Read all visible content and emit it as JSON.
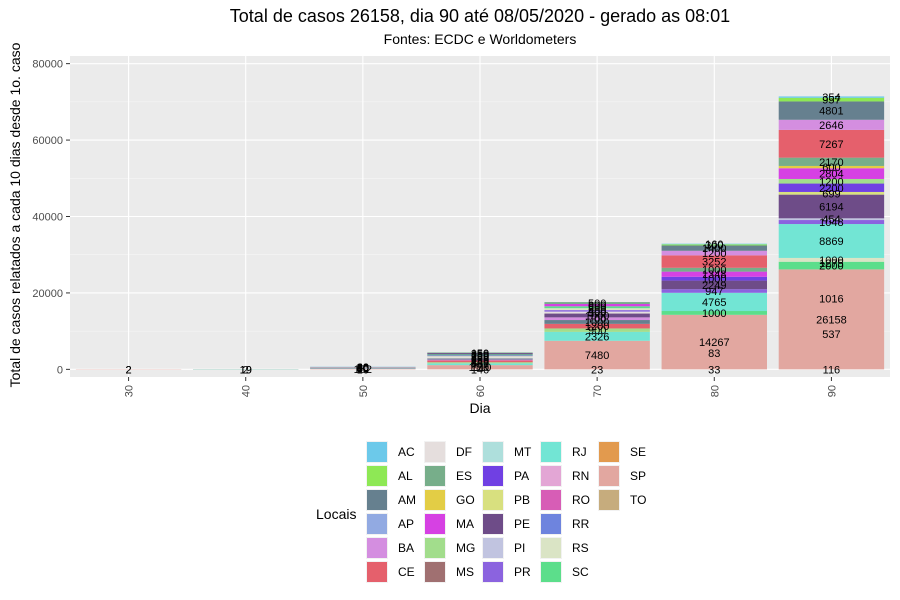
{
  "chart_data": {
    "type": "bar",
    "stacked": true,
    "title": "Total de casos 26158, dia 90 até 08/05/2020 - gerado as 08:01",
    "subtitle": "Fontes: ECDC e Worldometers",
    "xlabel": "Dia",
    "ylabel": "Total de casos relatados a cada 10 dias desde 1o. caso",
    "categories": [
      "30",
      "40",
      "50",
      "60",
      "70",
      "80",
      "90"
    ],
    "ylim": [
      -2000,
      82000
    ],
    "yticks": [
      0,
      20000,
      40000,
      60000,
      80000
    ],
    "ytick_labels": [
      "0",
      "20000",
      "40000",
      "60000",
      "80000"
    ],
    "grid": true,
    "legend": {
      "title": "Locais",
      "position": "bottom",
      "items": [
        {
          "name": "AC",
          "color": "#6CC9EA"
        },
        {
          "name": "AL",
          "color": "#8EE855"
        },
        {
          "name": "AM",
          "color": "#66808F"
        },
        {
          "name": "AP",
          "color": "#92AAE2"
        },
        {
          "name": "BA",
          "color": "#D48EE0"
        },
        {
          "name": "CE",
          "color": "#E5606C"
        },
        {
          "name": "DF",
          "color": "#E5DEDD"
        },
        {
          "name": "ES",
          "color": "#77AE8A"
        },
        {
          "name": "GO",
          "color": "#E3CD45"
        },
        {
          "name": "MA",
          "color": "#D641E3"
        },
        {
          "name": "MG",
          "color": "#A2DD8C"
        },
        {
          "name": "MS",
          "color": "#A07071"
        },
        {
          "name": "MT",
          "color": "#AEDFDC"
        },
        {
          "name": "PA",
          "color": "#7040E3"
        },
        {
          "name": "PB",
          "color": "#D8E07F"
        },
        {
          "name": "PE",
          "color": "#6E4C88"
        },
        {
          "name": "PI",
          "color": "#C1C4E0"
        },
        {
          "name": "PR",
          "color": "#8B63DF"
        },
        {
          "name": "RJ",
          "color": "#72E5D4"
        },
        {
          "name": "RN",
          "color": "#E3A6D5"
        },
        {
          "name": "RO",
          "color": "#D75DB6"
        },
        {
          "name": "RR",
          "color": "#6E84DE"
        },
        {
          "name": "RS",
          "color": "#DAE4C5"
        },
        {
          "name": "SC",
          "color": "#5CDE8B"
        },
        {
          "name": "SE",
          "color": "#E29A4E"
        },
        {
          "name": "SP",
          "color": "#E2A7A0"
        },
        {
          "name": "TO",
          "color": "#C6AC7D"
        }
      ]
    },
    "stacks": [
      {
        "category": "30",
        "segments": [
          {
            "local": "SP",
            "value": 2,
            "label": "2"
          }
        ]
      },
      {
        "category": "40",
        "segments": [
          {
            "local": "SP",
            "value": 19,
            "label": "19"
          },
          {
            "local": "RJ",
            "value": 2,
            "label": "2"
          }
        ]
      },
      {
        "category": "50",
        "segments": [
          {
            "local": "SP",
            "value": 152,
            "label": "152"
          },
          {
            "local": "SC",
            "value": 30,
            "label": "30"
          },
          {
            "local": "RS",
            "value": 40,
            "label": "40"
          },
          {
            "local": "RJ",
            "value": 60,
            "label": "60"
          },
          {
            "local": "PR",
            "value": 50,
            "label": "50"
          },
          {
            "local": "PE",
            "value": 40,
            "label": "40"
          },
          {
            "local": "MG",
            "value": 50,
            "label": "50"
          },
          {
            "local": "DF",
            "value": 60,
            "label": "60"
          },
          {
            "local": "CE",
            "value": 50,
            "label": "50"
          },
          {
            "local": "BA",
            "value": 60,
            "label": "60"
          },
          {
            "local": "AM",
            "value": 40,
            "label": "40"
          },
          {
            "local": "AC",
            "value": 30,
            "label": "30"
          }
        ]
      },
      {
        "category": "60",
        "segments": [
          {
            "local": "SP",
            "value": 1110,
            "label": "1110"
          },
          {
            "local": "RJ",
            "value": 457,
            "label": "457"
          },
          {
            "local": "MG",
            "value": 300,
            "label": "300"
          },
          {
            "local": "CE",
            "value": 450,
            "label": "450"
          },
          {
            "local": "BA",
            "value": 250,
            "label": "250"
          },
          {
            "local": "AM",
            "value": 300,
            "label": "300"
          },
          {
            "local": "DF",
            "value": 350,
            "label": "350"
          },
          {
            "local": "RS",
            "value": 250,
            "label": "250"
          },
          {
            "local": "PR",
            "value": 200,
            "label": "200"
          },
          {
            "local": "SC",
            "value": 250,
            "label": "250"
          },
          {
            "local": "PE",
            "value": 350,
            "label": "350"
          },
          {
            "local": "ES",
            "value": 150,
            "label": "150"
          }
        ]
      },
      {
        "category": "70",
        "segments": [
          {
            "local": "SP",
            "value": 7480,
            "label": "7480"
          },
          {
            "local": "RJ",
            "value": 2326,
            "label": "2326"
          },
          {
            "local": "MG",
            "value": 900,
            "label": "900"
          },
          {
            "local": "CE",
            "value": 1200,
            "label": "1200"
          },
          {
            "local": "AM",
            "value": 1000,
            "label": "1000"
          },
          {
            "local": "BA",
            "value": 700,
            "label": "700"
          },
          {
            "local": "PE",
            "value": 1000,
            "label": "1000"
          },
          {
            "local": "DF",
            "value": 500,
            "label": "500"
          },
          {
            "local": "PR",
            "value": 400,
            "label": "400"
          },
          {
            "local": "RS",
            "value": 500,
            "label": "500"
          },
          {
            "local": "SC",
            "value": 500,
            "label": "500"
          },
          {
            "local": "MA",
            "value": 600,
            "label": "600"
          },
          {
            "local": "ES",
            "value": 500,
            "label": "500"
          }
        ]
      },
      {
        "category": "80",
        "segments": [
          {
            "local": "SP",
            "value": 14267,
            "label": "14267"
          },
          {
            "local": "SC",
            "value": 1000,
            "label": "1000"
          },
          {
            "local": "RJ",
            "value": 4765,
            "label": "4765"
          },
          {
            "local": "PR",
            "value": 947,
            "label": "947"
          },
          {
            "local": "PE",
            "value": 2249,
            "label": "2249"
          },
          {
            "local": "PA",
            "value": 1000,
            "label": "1000"
          },
          {
            "local": "MA",
            "value": 1348,
            "label": "1348"
          },
          {
            "local": "ES",
            "value": 1000,
            "label": "1000"
          },
          {
            "local": "CE",
            "value": 3252,
            "label": "3252"
          },
          {
            "local": "BA",
            "value": 1200,
            "label": "1200"
          },
          {
            "local": "AM",
            "value": 1400,
            "label": "1400"
          },
          {
            "local": "AL",
            "value": 300,
            "label": "300"
          },
          {
            "local": "AC",
            "value": 160,
            "label": "160"
          }
        ]
      },
      {
        "category": "90",
        "segments": [
          {
            "local": "SP",
            "value": 26158,
            "label": "26158"
          },
          {
            "local": "SC",
            "value": 2000,
            "label": "2000"
          },
          {
            "local": "RS",
            "value": 1000,
            "label": "1000"
          },
          {
            "local": "RJ",
            "value": 8869,
            "label": "8869"
          },
          {
            "local": "PR",
            "value": 1048,
            "label": "1048"
          },
          {
            "local": "PI",
            "value": 454,
            "label": "454"
          },
          {
            "local": "PE",
            "value": 6194,
            "label": "6194"
          },
          {
            "local": "PB",
            "value": 699,
            "label": "699"
          },
          {
            "local": "PA",
            "value": 2200,
            "label": "2200"
          },
          {
            "local": "MG",
            "value": 1200,
            "label": "1200"
          },
          {
            "local": "MA",
            "value": 2804,
            "label": "2804"
          },
          {
            "local": "GO",
            "value": 600,
            "label": "600"
          },
          {
            "local": "ES",
            "value": 2170,
            "label": "2170"
          },
          {
            "local": "CE",
            "value": 7267,
            "label": "7267"
          },
          {
            "local": "BA",
            "value": 2646,
            "label": "2646"
          },
          {
            "local": "AM",
            "value": 4801,
            "label": "4801"
          },
          {
            "local": "AL",
            "value": 957,
            "label": "957"
          },
          {
            "local": "AC",
            "value": 354,
            "label": "354"
          }
        ]
      }
    ],
    "bottom_labels": [
      "2",
      "19",
      "10",
      "146",
      "23",
      "33",
      "116"
    ],
    "extra_labels": [
      {
        "category": "60",
        "label": "170"
      },
      {
        "category": "80",
        "label": "83"
      },
      {
        "category": "90",
        "label": "537"
      },
      {
        "category": "90",
        "label": "1016"
      },
      {
        "category": "90",
        "label": "1275"
      }
    ]
  }
}
